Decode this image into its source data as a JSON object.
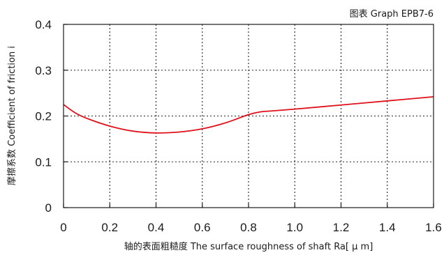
{
  "chart_data": {
    "type": "line",
    "caption": "图表 Graph EPB7-6",
    "xlabel": "轴的表面粗糙度 The surface roughness of shaft  Ra[ μ m]",
    "ylabel": "摩擦系数 Coefficient of friction i",
    "xlim": [
      0,
      1.6
    ],
    "ylim": [
      0,
      0.4
    ],
    "x_ticks": [
      "0",
      "0.2",
      "0.4",
      "0.6",
      "0.8",
      "1.0",
      "1.2",
      "1.4",
      "1.6"
    ],
    "y_ticks": [
      "0",
      "0.1",
      "0.2",
      "0.3",
      "0.4"
    ],
    "x_tick_values": [
      0,
      0.2,
      0.4,
      0.6,
      0.8,
      1.0,
      1.2,
      1.4,
      1.6
    ],
    "y_tick_values": [
      0,
      0.1,
      0.2,
      0.3,
      0.4
    ],
    "grid": "dotted",
    "series": [
      {
        "color": "#e0101a",
        "x": [
          0.0,
          0.05,
          0.1,
          0.2,
          0.3,
          0.4,
          0.5,
          0.6,
          0.7,
          0.8,
          0.85,
          0.9,
          1.0,
          1.2,
          1.4,
          1.6
        ],
        "y": [
          0.225,
          0.207,
          0.195,
          0.178,
          0.167,
          0.163,
          0.165,
          0.172,
          0.185,
          0.203,
          0.209,
          0.211,
          0.215,
          0.224,
          0.233,
          0.242
        ]
      }
    ]
  }
}
